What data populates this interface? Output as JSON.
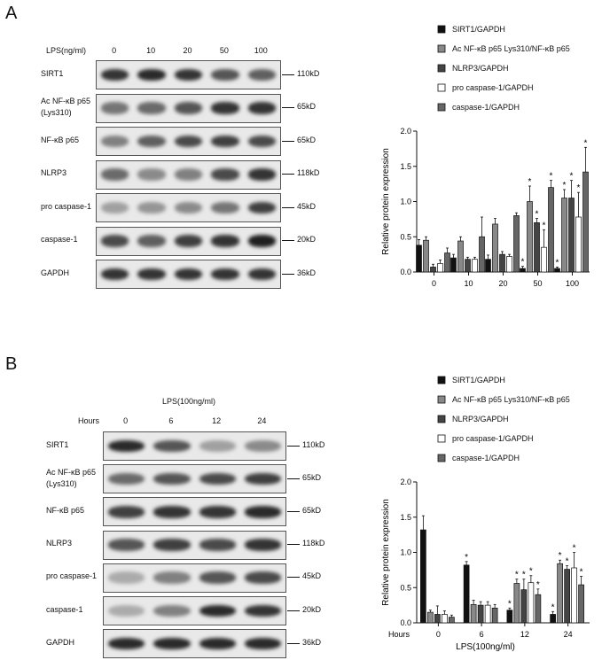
{
  "panelA": {
    "letter": "A",
    "header_label": "LPS(ng/ml)",
    "lanes": [
      "0",
      "10",
      "20",
      "50",
      "100"
    ],
    "rows": [
      {
        "name": "SIRT1",
        "kd": "110kD",
        "intensity": [
          0.85,
          0.9,
          0.85,
          0.7,
          0.65
        ]
      },
      {
        "name": "Ac NF-κB p65\n(Lys310)",
        "kd": "65kD",
        "intensity": [
          0.55,
          0.6,
          0.7,
          0.85,
          0.85
        ]
      },
      {
        "name": "NF-κB p65",
        "kd": "65kD",
        "intensity": [
          0.5,
          0.65,
          0.75,
          0.8,
          0.75
        ]
      },
      {
        "name": "NLRP3",
        "kd": "118kD",
        "intensity": [
          0.6,
          0.45,
          0.5,
          0.75,
          0.85
        ]
      },
      {
        "name": "pro caspase-1",
        "kd": "45kD",
        "intensity": [
          0.35,
          0.4,
          0.45,
          0.55,
          0.8
        ]
      },
      {
        "name": "caspase-1",
        "kd": "20kD",
        "intensity": [
          0.75,
          0.65,
          0.8,
          0.85,
          0.95
        ]
      },
      {
        "name": "GAPDH",
        "kd": "36kD",
        "intensity": [
          0.85,
          0.85,
          0.85,
          0.85,
          0.85
        ]
      }
    ]
  },
  "panelB": {
    "letter": "B",
    "header_label": "LPS(100ng/ml)",
    "lanes_label": "Hours",
    "lanes": [
      "0",
      "6",
      "12",
      "24"
    ],
    "rows": [
      {
        "name": "SIRT1",
        "kd": "110kD",
        "intensity": [
          0.9,
          0.7,
          0.35,
          0.45
        ]
      },
      {
        "name": "Ac NF-κB p65\n(Lys310)",
        "kd": "65kD",
        "intensity": [
          0.6,
          0.7,
          0.75,
          0.8
        ]
      },
      {
        "name": "NF-κB p65",
        "kd": "65kD",
        "intensity": [
          0.8,
          0.85,
          0.85,
          0.9
        ]
      },
      {
        "name": "NLRP3",
        "kd": "118kD",
        "intensity": [
          0.7,
          0.8,
          0.75,
          0.85
        ]
      },
      {
        "name": "pro caspase-1",
        "kd": "45kD",
        "intensity": [
          0.3,
          0.5,
          0.7,
          0.75
        ]
      },
      {
        "name": "caspase-1",
        "kd": "20kD",
        "intensity": [
          0.3,
          0.5,
          0.9,
          0.85
        ]
      },
      {
        "name": "GAPDH",
        "kd": "36kD",
        "intensity": [
          0.9,
          0.9,
          0.9,
          0.9
        ]
      }
    ]
  },
  "chart_data": [
    {
      "type": "bar",
      "ylabel": "Relative  protein  expression",
      "xlabel": "",
      "ylim": [
        0,
        2.0
      ],
      "yticks": [
        "0.0",
        "0.5",
        "1.0",
        "1.5",
        "2.0"
      ],
      "categories": [
        "0",
        "10",
        "20",
        "50",
        "100"
      ],
      "legend_position": "top",
      "series": [
        {
          "name": "SIRT1/GAPDH",
          "values": [
            0.38,
            0.2,
            0.18,
            0.05,
            0.05
          ],
          "errors": [
            0.08,
            0.05,
            0.06,
            0.03,
            0.02
          ],
          "star": [
            false,
            false,
            false,
            true,
            true
          ],
          "fill": "#111111"
        },
        {
          "name": "Ac NF-κB p65 Lys310/NF-κB p65",
          "values": [
            0.45,
            0.44,
            0.68,
            1.0,
            1.05
          ],
          "errors": [
            0.05,
            0.06,
            0.08,
            0.22,
            0.12
          ],
          "star": [
            false,
            false,
            false,
            true,
            true
          ],
          "fill": "#888888"
        },
        {
          "name": "NLRP3/GAPDH",
          "values": [
            0.07,
            0.18,
            0.25,
            0.7,
            1.05
          ],
          "errors": [
            0.04,
            0.03,
            0.04,
            0.06,
            0.25
          ],
          "star": [
            false,
            false,
            false,
            true,
            true
          ],
          "fill": "#444444"
        },
        {
          "name": "pro caspase-1/GAPDH",
          "values": [
            0.12,
            0.18,
            0.22,
            0.35,
            0.78
          ],
          "errors": [
            0.05,
            0.03,
            0.03,
            0.25,
            0.35
          ],
          "star": [
            false,
            false,
            false,
            true,
            true
          ],
          "fill": "#ffffff"
        },
        {
          "name": "caspase-1/GAPDH",
          "values": [
            0.27,
            0.5,
            0.8,
            1.2,
            1.42
          ],
          "errors": [
            0.07,
            0.28,
            0.04,
            0.1,
            0.35
          ],
          "star": [
            false,
            false,
            false,
            true,
            true
          ],
          "fill": "#666666"
        }
      ]
    },
    {
      "type": "bar",
      "ylabel": "Relative  protein  expression",
      "xlabel": "LPS(100ng/ml)",
      "x_prefix": "Hours",
      "ylim": [
        0,
        2.0
      ],
      "yticks": [
        "0.0",
        "0.5",
        "1.0",
        "1.5",
        "2.0"
      ],
      "categories": [
        "0",
        "6",
        "12",
        "24"
      ],
      "legend_position": "top",
      "series": [
        {
          "name": "SIRT1/GAPDH",
          "values": [
            1.32,
            0.82,
            0.18,
            0.12
          ],
          "errors": [
            0.2,
            0.05,
            0.03,
            0.04
          ],
          "star": [
            false,
            true,
            true,
            true
          ],
          "fill": "#111111"
        },
        {
          "name": "Ac NF-κB p65 Lys310/NF-κB p65",
          "values": [
            0.15,
            0.26,
            0.56,
            0.84
          ],
          "errors": [
            0.03,
            0.06,
            0.06,
            0.05
          ],
          "star": [
            false,
            false,
            true,
            true
          ],
          "fill": "#888888"
        },
        {
          "name": "NLRP3/GAPDH",
          "values": [
            0.12,
            0.25,
            0.47,
            0.76
          ],
          "errors": [
            0.12,
            0.05,
            0.15,
            0.05
          ],
          "star": [
            false,
            false,
            true,
            true
          ],
          "fill": "#444444"
        },
        {
          "name": "pro caspase-1/GAPDH",
          "values": [
            0.12,
            0.25,
            0.57,
            0.78
          ],
          "errors": [
            0.05,
            0.05,
            0.1,
            0.22
          ],
          "star": [
            false,
            false,
            true,
            true
          ],
          "fill": "#ffffff"
        },
        {
          "name": "caspase-1/GAPDH",
          "values": [
            0.08,
            0.21,
            0.4,
            0.54
          ],
          "errors": [
            0.03,
            0.05,
            0.08,
            0.12
          ],
          "star": [
            false,
            false,
            true,
            true
          ],
          "fill": "#666666"
        }
      ]
    }
  ]
}
